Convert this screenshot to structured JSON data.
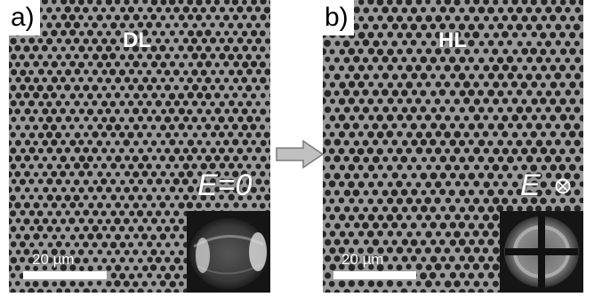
{
  "panels": [
    {
      "letter": "a)",
      "texture": "DL",
      "field": "E=0",
      "scale": "20 µm"
    },
    {
      "letter": "b)",
      "texture": "HL",
      "field": "E",
      "field_symbol": "circled-times",
      "scale": "20 µm"
    }
  ],
  "colors": {
    "background": "#9a9a9a",
    "holes": "#262626",
    "arrow": "#c0c0c0"
  }
}
